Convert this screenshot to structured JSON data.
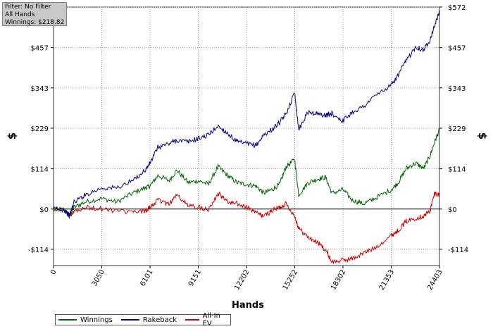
{
  "filter": {
    "line1": "Filter: No Filter",
    "line2": "All Hands",
    "line3": "Winnings: $218.82"
  },
  "chart_data": {
    "type": "line",
    "xlabel": "Hands",
    "ylabel_left": "$",
    "ylabel_right": "$",
    "xlim": [
      0,
      24403
    ],
    "ylim": [
      -160,
      572
    ],
    "x_ticks": [
      0,
      3050,
      6101,
      9151,
      12202,
      15252,
      18302,
      21353,
      24403
    ],
    "x_tick_labels": [
      "0",
      "3050",
      "6101",
      "9151",
      "12202",
      "15252",
      "18302",
      "21353",
      "24403"
    ],
    "y_ticks": [
      -114,
      0,
      114,
      229,
      343,
      457,
      572
    ],
    "y_tick_labels": [
      "-$114",
      "$0",
      "$114",
      "$229",
      "$343",
      "$457",
      "$572"
    ],
    "grid": true,
    "legend": "bottom-left",
    "series": [
      {
        "name": "Winnings",
        "color": "#006400",
        "points": [
          [
            0,
            0
          ],
          [
            700,
            -2
          ],
          [
            1000,
            -20
          ],
          [
            1300,
            5
          ],
          [
            2000,
            20
          ],
          [
            3050,
            30
          ],
          [
            4000,
            20
          ],
          [
            5000,
            45
          ],
          [
            5800,
            60
          ],
          [
            6101,
            65
          ],
          [
            6600,
            95
          ],
          [
            7300,
            80
          ],
          [
            7800,
            110
          ],
          [
            8500,
            75
          ],
          [
            9151,
            80
          ],
          [
            9800,
            70
          ],
          [
            10400,
            120
          ],
          [
            11000,
            95
          ],
          [
            11600,
            75
          ],
          [
            12202,
            70
          ],
          [
            12800,
            65
          ],
          [
            13300,
            45
          ],
          [
            13800,
            55
          ],
          [
            14300,
            70
          ],
          [
            14700,
            120
          ],
          [
            15252,
            140
          ],
          [
            15500,
            40
          ],
          [
            16100,
            75
          ],
          [
            16700,
            85
          ],
          [
            17200,
            90
          ],
          [
            17600,
            45
          ],
          [
            18302,
            55
          ],
          [
            18900,
            25
          ],
          [
            19600,
            15
          ],
          [
            20300,
            30
          ],
          [
            21353,
            55
          ],
          [
            21800,
            75
          ],
          [
            22300,
            115
          ],
          [
            22900,
            130
          ],
          [
            23400,
            115
          ],
          [
            23800,
            150
          ],
          [
            24100,
            190
          ],
          [
            24403,
            225
          ]
        ]
      },
      {
        "name": "Rakeback",
        "color": "#000080",
        "points": [
          [
            0,
            0
          ],
          [
            700,
            -2
          ],
          [
            1000,
            -20
          ],
          [
            1300,
            20
          ],
          [
            2000,
            40
          ],
          [
            3050,
            60
          ],
          [
            4000,
            60
          ],
          [
            5000,
            80
          ],
          [
            5800,
            110
          ],
          [
            6101,
            130
          ],
          [
            6600,
            175
          ],
          [
            7300,
            185
          ],
          [
            7800,
            195
          ],
          [
            8500,
            190
          ],
          [
            9151,
            200
          ],
          [
            9800,
            210
          ],
          [
            10400,
            235
          ],
          [
            11000,
            215
          ],
          [
            11600,
            190
          ],
          [
            12202,
            185
          ],
          [
            12800,
            180
          ],
          [
            13300,
            210
          ],
          [
            13800,
            225
          ],
          [
            14300,
            245
          ],
          [
            14700,
            270
          ],
          [
            15252,
            330
          ],
          [
            15500,
            225
          ],
          [
            16100,
            275
          ],
          [
            16700,
            270
          ],
          [
            17200,
            265
          ],
          [
            17600,
            270
          ],
          [
            18302,
            250
          ],
          [
            18900,
            275
          ],
          [
            19600,
            290
          ],
          [
            20300,
            320
          ],
          [
            21353,
            350
          ],
          [
            21800,
            380
          ],
          [
            22300,
            420
          ],
          [
            22900,
            460
          ],
          [
            23400,
            450
          ],
          [
            23800,
            480
          ],
          [
            24100,
            520
          ],
          [
            24403,
            560
          ]
        ]
      },
      {
        "name": "All-In EV",
        "color": "#cc0000",
        "points": [
          [
            0,
            0
          ],
          [
            700,
            -2
          ],
          [
            1000,
            -20
          ],
          [
            1300,
            -5
          ],
          [
            2000,
            5
          ],
          [
            3050,
            0
          ],
          [
            4000,
            -5
          ],
          [
            5000,
            -10
          ],
          [
            5800,
            -5
          ],
          [
            6101,
            5
          ],
          [
            6600,
            25
          ],
          [
            7300,
            15
          ],
          [
            7800,
            40
          ],
          [
            8500,
            10
          ],
          [
            9151,
            5
          ],
          [
            9800,
            0
          ],
          [
            10400,
            45
          ],
          [
            11000,
            20
          ],
          [
            11600,
            15
          ],
          [
            12202,
            5
          ],
          [
            12800,
            -10
          ],
          [
            13300,
            -20
          ],
          [
            13800,
            -5
          ],
          [
            14300,
            5
          ],
          [
            14700,
            15
          ],
          [
            15252,
            -20
          ],
          [
            15500,
            -55
          ],
          [
            16100,
            -80
          ],
          [
            16700,
            -95
          ],
          [
            17200,
            -115
          ],
          [
            17600,
            -150
          ],
          [
            18302,
            -145
          ],
          [
            18900,
            -140
          ],
          [
            19600,
            -125
          ],
          [
            20300,
            -110
          ],
          [
            21353,
            -75
          ],
          [
            21800,
            -60
          ],
          [
            22300,
            -35
          ],
          [
            22900,
            -25
          ],
          [
            23400,
            -20
          ],
          [
            23800,
            -5
          ],
          [
            24100,
            45
          ],
          [
            24403,
            40
          ]
        ]
      }
    ]
  }
}
